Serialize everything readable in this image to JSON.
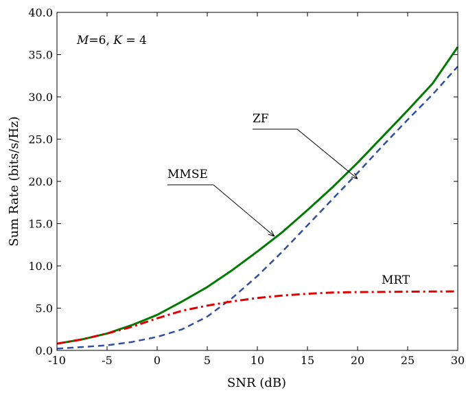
{
  "chart_data": {
    "type": "line",
    "xlabel": "SNR (dB)",
    "ylabel": "Sum Rate (bits/s/Hz)",
    "xlim": [
      -10,
      30
    ],
    "ylim": [
      0,
      40
    ],
    "xticks": [
      "-10",
      "-5",
      "0",
      "5",
      "10",
      "15",
      "20",
      "25",
      "30"
    ],
    "yticks": [
      "0.0",
      "5.0",
      "10.0",
      "15.0",
      "20.0",
      "25.0",
      "30.0",
      "35.0",
      "40.0"
    ],
    "grid": false,
    "legend": "none",
    "param_label": {
      "m": "M",
      "m_val": "=6, ",
      "k": "K",
      "k_val": " = 4"
    },
    "series": [
      {
        "name": "MMSE",
        "color": "#007a00",
        "style": "solid",
        "x": [
          -10,
          -7.5,
          -5,
          -2.5,
          0,
          2.5,
          5,
          7.5,
          10,
          12.5,
          15,
          17.5,
          20,
          22.5,
          25,
          27.5,
          30
        ],
        "y": [
          0.8,
          1.3,
          2.0,
          3.0,
          4.2,
          5.8,
          7.5,
          9.5,
          11.7,
          14.0,
          16.6,
          19.3,
          22.2,
          25.3,
          28.4,
          31.6,
          35.9
        ]
      },
      {
        "name": "ZF",
        "color": "#2e4fa0",
        "style": "dashed",
        "x": [
          -10,
          -7.5,
          -5,
          -2.5,
          0,
          2.5,
          5,
          7.5,
          10,
          12.5,
          15,
          17.5,
          20,
          22.5,
          25,
          27.5,
          30
        ],
        "y": [
          0.2,
          0.4,
          0.6,
          1.0,
          1.6,
          2.5,
          4.0,
          6.2,
          8.8,
          11.7,
          14.8,
          17.9,
          21.0,
          24.2,
          27.3,
          30.3,
          33.6
        ]
      },
      {
        "name": "MRT",
        "color": "#e00000",
        "style": "dashdot",
        "x": [
          -10,
          -7.5,
          -5,
          -2.5,
          0,
          2.5,
          5,
          7.5,
          10,
          12.5,
          15,
          17.5,
          20,
          22.5,
          25,
          27.5,
          30
        ],
        "y": [
          0.8,
          1.3,
          2.0,
          2.8,
          3.8,
          4.7,
          5.3,
          5.8,
          6.2,
          6.5,
          6.7,
          6.85,
          6.9,
          6.92,
          6.95,
          6.97,
          6.98
        ]
      }
    ],
    "annotations": [
      {
        "text": "ZF",
        "target": "ZF",
        "point": [
          20,
          20.3
        ]
      },
      {
        "text": "MMSE",
        "target": "MMSE",
        "point": [
          11.7,
          13.5
        ]
      },
      {
        "text": "MRT",
        "target": "MRT"
      }
    ]
  }
}
